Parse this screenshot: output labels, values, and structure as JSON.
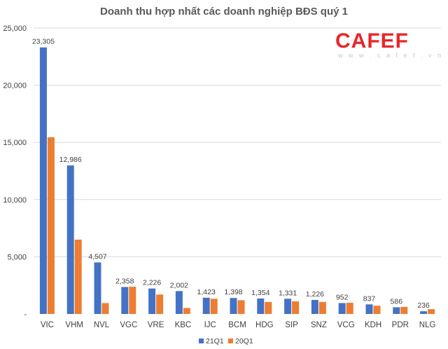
{
  "chart_data": {
    "type": "bar",
    "title": "Doanh thu hợp nhất các doanh nghiệp BĐS quý 1",
    "categories": [
      "VIC",
      "VHM",
      "NVL",
      "VGC",
      "VRE",
      "KBC",
      "IJC",
      "BCM",
      "HDG",
      "SIP",
      "SNZ",
      "VCG",
      "KDH",
      "PDR",
      "NLG"
    ],
    "series": [
      {
        "name": "21Q1",
        "color": "#4472c4",
        "values": [
          23305,
          12986,
          4507,
          2358,
          2226,
          2002,
          1423,
          1398,
          1354,
          1331,
          1226,
          952,
          837,
          586,
          236
        ],
        "labels": [
          "23,305",
          "12,986",
          "4,507",
          "2,358",
          "2,226",
          "2,002",
          "1,423",
          "1,398",
          "1,354",
          "1,331",
          "1,226",
          "952",
          "837",
          "586",
          "236"
        ]
      },
      {
        "name": "20Q1",
        "color": "#ed7d31",
        "values": [
          15450,
          6500,
          950,
          2380,
          1700,
          520,
          1330,
          1200,
          1050,
          1100,
          1050,
          980,
          720,
          620,
          420
        ]
      }
    ],
    "ylim": [
      0,
      25000
    ],
    "yticks": [
      0,
      5000,
      10000,
      15000,
      20000,
      25000
    ],
    "ytick_labels": [
      "-",
      "5,000",
      "10,000",
      "15,000",
      "20,000",
      "25,000"
    ],
    "grid": true,
    "legend_position": "bottom"
  },
  "watermark": {
    "brand_text": "CAFEF",
    "url_text": "w w w . c a f e f . v n",
    "brand_color": "#e8262b"
  }
}
